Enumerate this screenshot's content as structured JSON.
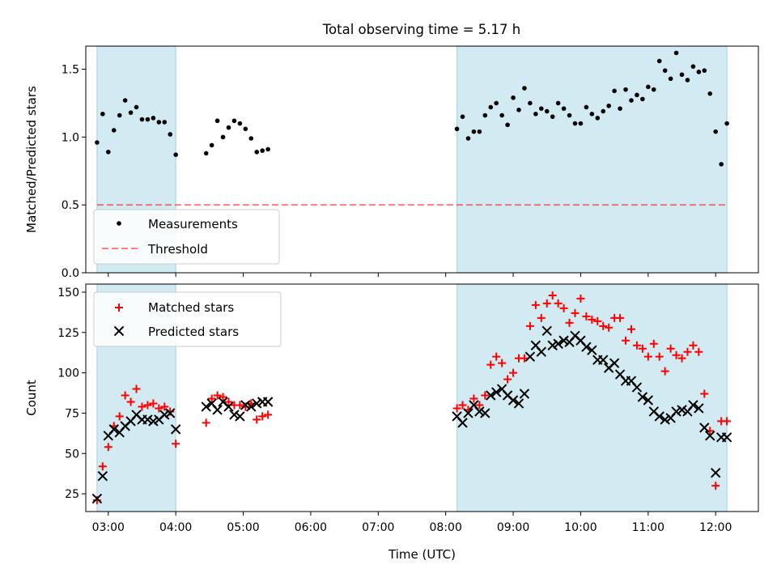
{
  "title": "Total observing time = 5.17 h",
  "colors": {
    "shade": "#add8e6",
    "threshold": "#ff0000",
    "matched": "#ff0000",
    "predicted": "#000000",
    "measurements": "#000000"
  },
  "chart_data": [
    {
      "type": "scatter",
      "panel": "top",
      "ylabel": "Matched/Predicted stars",
      "xlabel": "",
      "ylim": [
        0.0,
        1.67
      ],
      "xlim": [
        "02:40",
        "12:38"
      ],
      "yticks": [
        "0.0",
        "0.5",
        "1.0",
        "1.5"
      ],
      "legend_position": "lower-left",
      "shaded_intervals": [
        [
          "02:50",
          "04:00"
        ],
        [
          "08:10",
          "12:10"
        ]
      ],
      "threshold": {
        "name": "Threshold",
        "y": 0.5,
        "x_range": [
          "02:50",
          "12:10"
        ],
        "style": "dashed"
      },
      "series": [
        {
          "name": "Measurements",
          "marker": "dot",
          "x": [
            "02:50",
            "02:55",
            "03:00",
            "03:05",
            "03:10",
            "03:15",
            "03:20",
            "03:25",
            "03:30",
            "03:35",
            "03:40",
            "03:45",
            "03:50",
            "03:55",
            "04:00",
            "04:27",
            "04:32",
            "04:37",
            "04:42",
            "04:47",
            "04:52",
            "04:57",
            "05:02",
            "05:07",
            "05:12",
            "05:17",
            "05:22",
            "08:10",
            "08:15",
            "08:20",
            "08:25",
            "08:30",
            "08:35",
            "08:40",
            "08:45",
            "08:50",
            "08:55",
            "09:00",
            "09:05",
            "09:10",
            "09:15",
            "09:20",
            "09:25",
            "09:30",
            "09:35",
            "09:40",
            "09:45",
            "09:50",
            "09:55",
            "10:00",
            "10:05",
            "10:10",
            "10:15",
            "10:20",
            "10:25",
            "10:30",
            "10:35",
            "10:40",
            "10:45",
            "10:50",
            "10:55",
            "11:00",
            "11:05",
            "11:10",
            "11:15",
            "11:20",
            "11:25",
            "11:30",
            "11:35",
            "11:40",
            "11:45",
            "11:50",
            "11:55",
            "12:00",
            "12:05",
            "12:10"
          ],
          "y": [
            0.96,
            1.17,
            0.89,
            1.05,
            1.16,
            1.27,
            1.18,
            1.22,
            1.13,
            1.13,
            1.14,
            1.11,
            1.11,
            1.02,
            0.87,
            0.88,
            0.94,
            1.12,
            1.0,
            1.07,
            1.12,
            1.1,
            1.06,
            0.99,
            0.89,
            0.9,
            0.91,
            1.06,
            1.15,
            0.99,
            1.04,
            1.04,
            1.16,
            1.22,
            1.25,
            1.16,
            1.09,
            1.29,
            1.2,
            1.36,
            1.25,
            1.17,
            1.21,
            1.19,
            1.15,
            1.25,
            1.21,
            1.16,
            1.1,
            1.1,
            1.22,
            1.17,
            1.14,
            1.19,
            1.23,
            1.34,
            1.21,
            1.35,
            1.27,
            1.31,
            1.28,
            1.37,
            1.35,
            1.56,
            1.49,
            1.43,
            1.62,
            1.46,
            1.42,
            1.52,
            1.48,
            1.49,
            1.32,
            1.04,
            0.8,
            1.1
          ]
        }
      ]
    },
    {
      "type": "scatter",
      "panel": "bottom",
      "ylabel": "Count",
      "xlabel": "Time (UTC)",
      "ylim": [
        14,
        155
      ],
      "xlim": [
        "02:40",
        "12:38"
      ],
      "yticks": [
        "25",
        "50",
        "75",
        "100",
        "125",
        "150"
      ],
      "xticks": [
        "03:00",
        "04:00",
        "05:00",
        "06:00",
        "07:00",
        "08:00",
        "09:00",
        "10:00",
        "11:00",
        "12:00"
      ],
      "legend_position": "upper-left",
      "shaded_intervals": [
        [
          "02:50",
          "04:00"
        ],
        [
          "08:10",
          "12:10"
        ]
      ],
      "series": [
        {
          "name": "Matched stars",
          "marker": "plus",
          "x": [
            "02:50",
            "02:55",
            "03:00",
            "03:05",
            "03:10",
            "03:15",
            "03:20",
            "03:25",
            "03:30",
            "03:35",
            "03:40",
            "03:45",
            "03:50",
            "03:55",
            "04:00",
            "04:27",
            "04:32",
            "04:37",
            "04:42",
            "04:47",
            "04:52",
            "04:57",
            "05:02",
            "05:07",
            "05:12",
            "05:17",
            "05:22",
            "08:10",
            "08:15",
            "08:20",
            "08:25",
            "08:30",
            "08:35",
            "08:40",
            "08:45",
            "08:50",
            "08:55",
            "09:00",
            "09:05",
            "09:10",
            "09:15",
            "09:20",
            "09:25",
            "09:30",
            "09:35",
            "09:40",
            "09:45",
            "09:50",
            "09:55",
            "10:00",
            "10:05",
            "10:10",
            "10:15",
            "10:20",
            "10:25",
            "10:30",
            "10:35",
            "10:40",
            "10:45",
            "10:50",
            "10:55",
            "11:00",
            "11:05",
            "11:10",
            "11:15",
            "11:20",
            "11:25",
            "11:30",
            "11:35",
            "11:40",
            "11:45",
            "11:50",
            "11:55",
            "12:00",
            "12:05",
            "12:10"
          ],
          "y": [
            21,
            42,
            54,
            67,
            73,
            86,
            82,
            90,
            79,
            80,
            81,
            78,
            79,
            76,
            56,
            69,
            84,
            86,
            85,
            82,
            80,
            80,
            79,
            81,
            71,
            73,
            74,
            78,
            80,
            77,
            84,
            80,
            86,
            105,
            110,
            106,
            96,
            100,
            109,
            109,
            129,
            142,
            134,
            143,
            148,
            143,
            140,
            131,
            137,
            146,
            135,
            133,
            132,
            129,
            128,
            134,
            134,
            120,
            127,
            117,
            115,
            110,
            118,
            110,
            101,
            115,
            111,
            109,
            113,
            117,
            113,
            87,
            64,
            30,
            70,
            70
          ]
        },
        {
          "name": "Predicted stars",
          "marker": "x",
          "x": [
            "02:50",
            "02:55",
            "03:00",
            "03:05",
            "03:10",
            "03:15",
            "03:20",
            "03:25",
            "03:30",
            "03:35",
            "03:40",
            "03:45",
            "03:50",
            "03:55",
            "04:00",
            "04:27",
            "04:32",
            "04:37",
            "04:42",
            "04:47",
            "04:52",
            "04:57",
            "05:02",
            "05:07",
            "05:12",
            "05:17",
            "05:22",
            "08:10",
            "08:15",
            "08:20",
            "08:25",
            "08:30",
            "08:35",
            "08:40",
            "08:45",
            "08:50",
            "08:55",
            "09:00",
            "09:05",
            "09:10",
            "09:15",
            "09:20",
            "09:25",
            "09:30",
            "09:35",
            "09:40",
            "09:45",
            "09:50",
            "09:55",
            "10:00",
            "10:05",
            "10:10",
            "10:15",
            "10:20",
            "10:25",
            "10:30",
            "10:35",
            "10:40",
            "10:45",
            "10:50",
            "10:55",
            "11:00",
            "11:05",
            "11:10",
            "11:15",
            "11:20",
            "11:25",
            "11:30",
            "11:35",
            "11:40",
            "11:45",
            "11:50",
            "11:55",
            "12:00",
            "12:05",
            "12:10"
          ],
          "y": [
            22,
            36,
            61,
            65,
            63,
            67,
            70,
            74,
            71,
            71,
            70,
            71,
            74,
            75,
            65,
            79,
            81,
            77,
            82,
            79,
            74,
            73,
            80,
            79,
            81,
            82,
            82,
            73,
            69,
            75,
            80,
            76,
            75,
            86,
            88,
            90,
            86,
            83,
            81,
            87,
            110,
            117,
            113,
            126,
            117,
            118,
            120,
            119,
            123,
            120,
            116,
            114,
            108,
            108,
            103,
            106,
            99,
            95,
            95,
            91,
            85,
            83,
            76,
            73,
            71,
            72,
            76,
            77,
            76,
            80,
            78,
            66,
            61,
            38,
            60,
            60
          ]
        }
      ]
    }
  ]
}
